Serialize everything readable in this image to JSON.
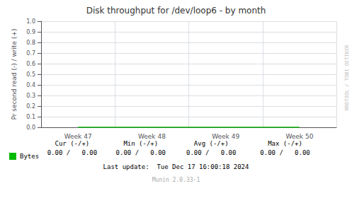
{
  "chart_data": {
    "type": "line",
    "title": "Disk throughput for /dev/loop6 - by month",
    "ylabel": "Pr second read (-) / write (+)",
    "categories": [
      "Week 47",
      "Week 48",
      "Week 49",
      "Week 50"
    ],
    "series": [
      {
        "name": "Bytes",
        "color": "#00bb00",
        "values": [
          0.0,
          0.0,
          0.0,
          0.0
        ]
      }
    ],
    "ylim": [
      0.0,
      1.0
    ],
    "yticks": [
      {
        "value": 0.0,
        "label": "0.0"
      },
      0.1,
      0.2,
      0.3,
      0.4,
      0.5,
      0.6,
      0.7,
      0.8,
      0.9,
      {
        "value": 1.0,
        "label": "1.0"
      }
    ],
    "grid": true,
    "legend": "lower left",
    "annotations": [
      "Cur (-/+)",
      "Min (-/+)",
      "Avg (-/+)",
      "Max (-/+)",
      "0.00 /   0.00",
      "0.00 /   0.00",
      "0.00 /   0.00",
      "0.00 /   0.00",
      "Last update:  Tue Dec 17 16:00:18 2024",
      "Munin 2.0.33-1",
      "RRDTOOL / TOBI OETIKER"
    ]
  }
}
